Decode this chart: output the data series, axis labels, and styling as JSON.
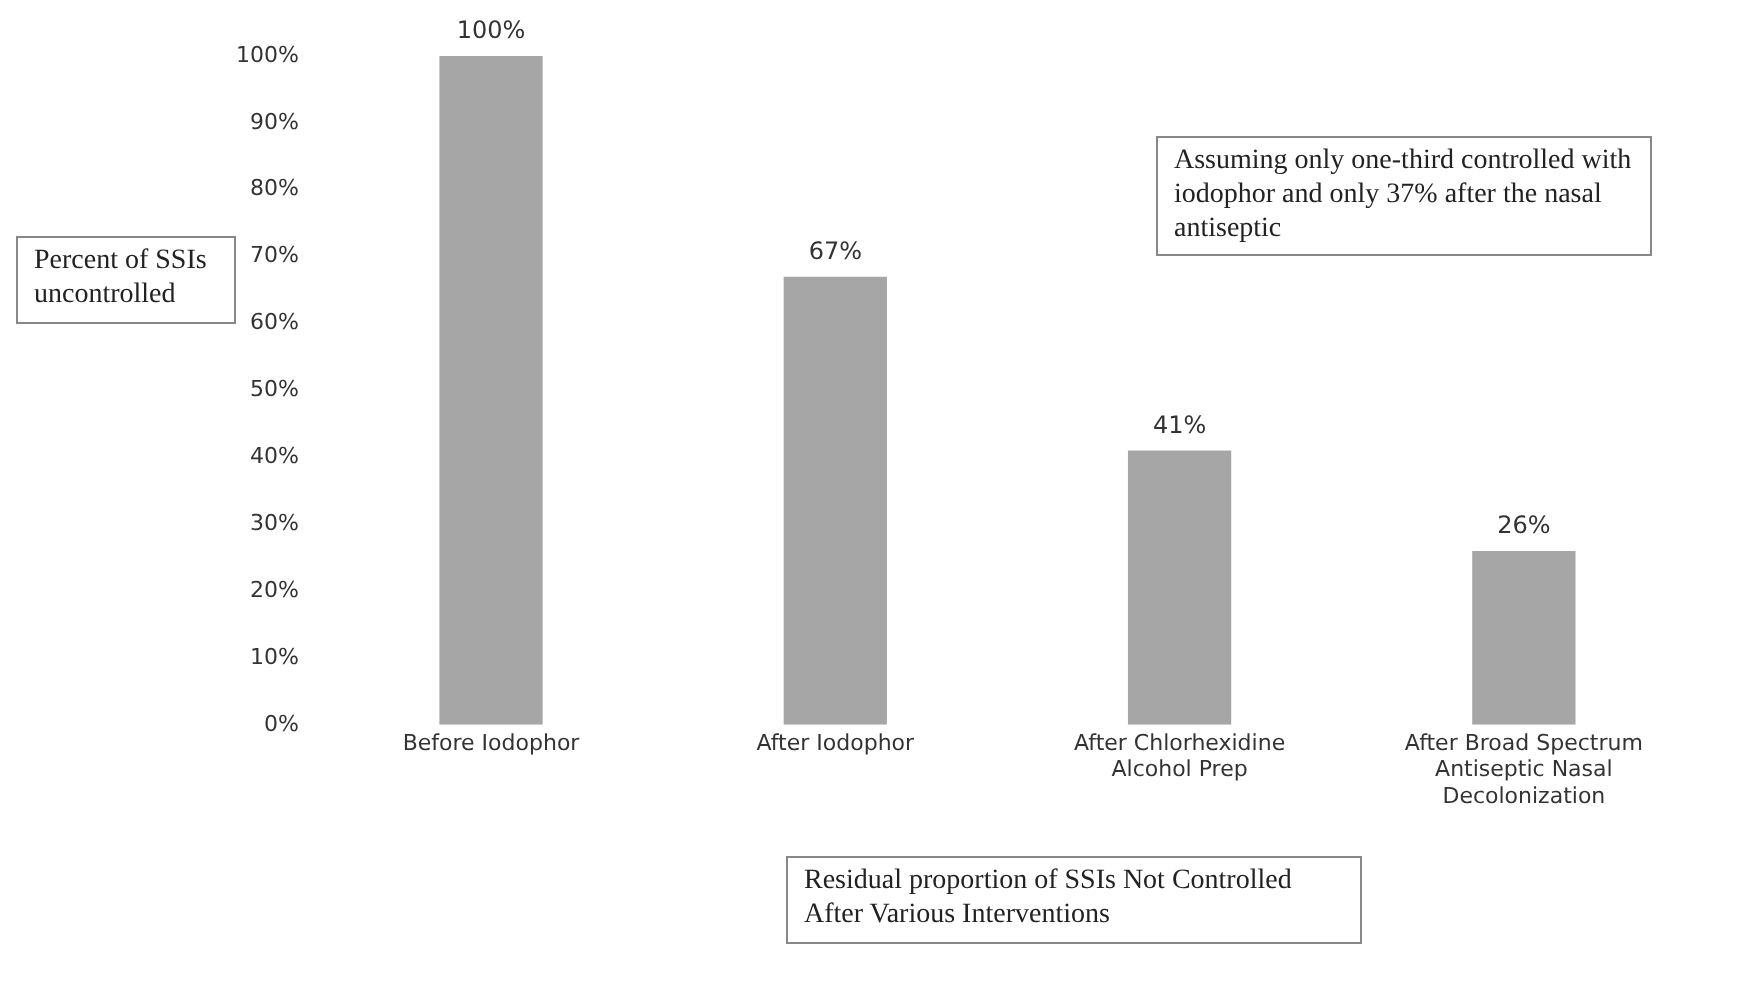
{
  "chart_data": {
    "type": "bar",
    "title": "Residual proportion of SSIs Not Controlled After Various Interventions",
    "ylabel": "Percent of SSIs uncontrolled",
    "annotations": [
      "Assuming only one-third controlled with iodophor and only 37% after the nasal antiseptic"
    ],
    "categories": [
      "Before Iodophor",
      "After Iodophor",
      "After Chlorhexidine Alcohol Prep",
      "After Broad Spectrum Antiseptic Nasal Decolonization"
    ],
    "values": [
      100,
      67,
      41,
      26
    ],
    "value_labels": [
      "100%",
      "67%",
      "41%",
      "26%"
    ],
    "color": "#a6a6a6",
    "ylim": [
      0,
      100
    ],
    "yticks": [
      {
        "value": 0,
        "label": "0%"
      },
      {
        "value": 10,
        "label": "10%"
      },
      {
        "value": 20,
        "label": "20%"
      },
      {
        "value": 30,
        "label": "30%"
      },
      {
        "value": 40,
        "label": "40%"
      },
      {
        "value": 50,
        "label": "50%"
      },
      {
        "value": 60,
        "label": "60%"
      },
      {
        "value": 70,
        "label": "70%"
      },
      {
        "value": 80,
        "label": "80%"
      },
      {
        "value": 90,
        "label": "90%"
      },
      {
        "value": 100,
        "label": "100%"
      }
    ],
    "grid": false,
    "legend": false
  }
}
